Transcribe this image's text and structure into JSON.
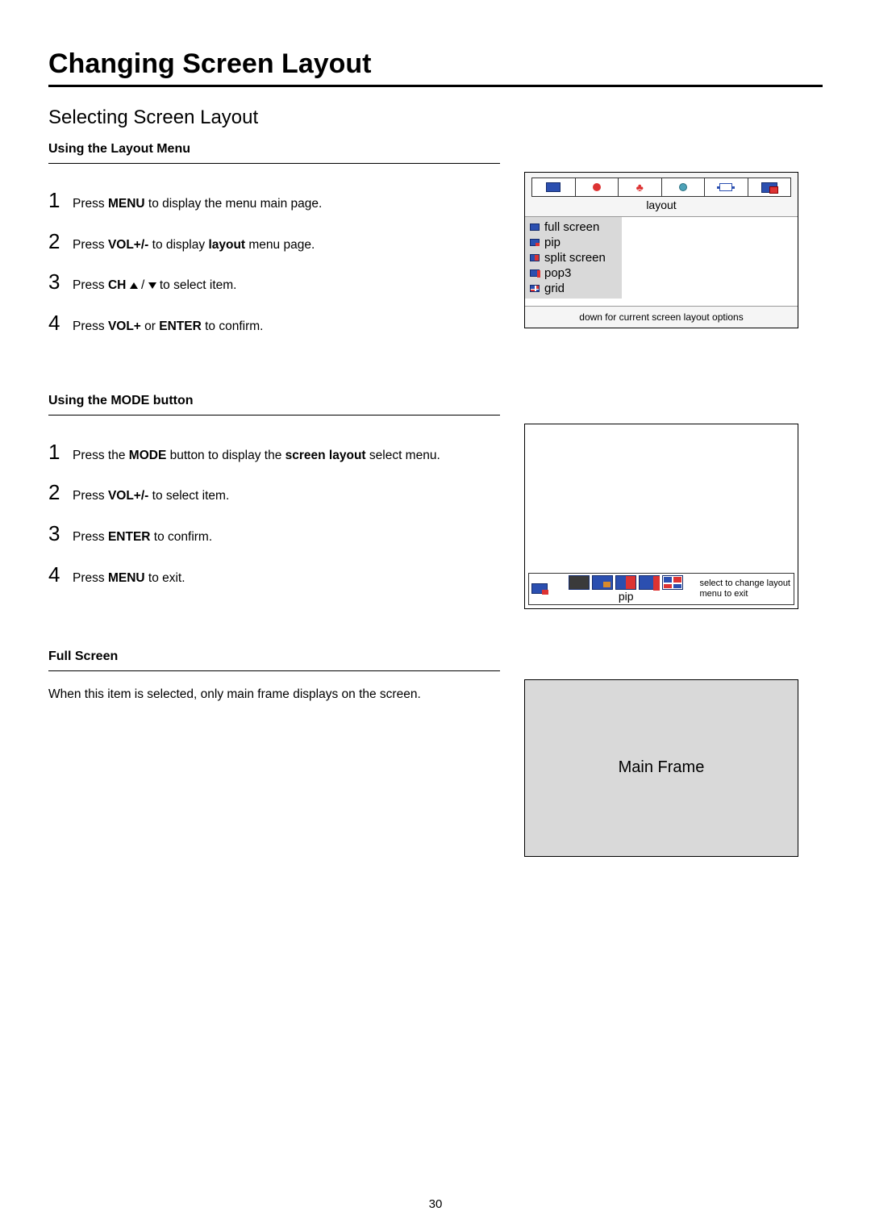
{
  "page": {
    "title": "Changing Screen Layout",
    "subtitle": "Selecting Screen Layout",
    "number": "30"
  },
  "section1": {
    "label": "Using the Layout Menu",
    "steps": [
      {
        "num": "1",
        "html": "Press <b>MENU</b> to display the menu main page."
      },
      {
        "num": "2",
        "html": "Press <b>VOL+/-</b> to display <b>layout</b> menu page."
      },
      {
        "num": "3",
        "html": "Press <b>CH</b> <span class='tri-up'></span> / <span class='tri-down'></span> to select item."
      },
      {
        "num": "4",
        "html": "Press <b>VOL+</b> or <b>ENTER</b> to confirm."
      }
    ],
    "fig": {
      "tab_caption": "layout",
      "menu_items": [
        "full screen",
        "pip",
        "split screen",
        "pop3",
        "grid"
      ],
      "footer": "down for current screen layout options"
    }
  },
  "section2": {
    "label": "Using the MODE button",
    "steps": [
      {
        "num": "1",
        "html": "Press the <b>MODE</b> button to display the <b>screen layout</b> select menu."
      },
      {
        "num": "2",
        "html": "Press <b>VOL+/-</b> to select item."
      },
      {
        "num": "3",
        "html": "Press <b>ENTER</b> to confirm."
      },
      {
        "num": "4",
        "html": "Press <b>MENU</b> to exit."
      }
    ],
    "fig": {
      "caption": "pip",
      "right_line1": "select to change layout",
      "right_line2": "menu to exit"
    }
  },
  "section3": {
    "label": "Full Screen",
    "body": "When this item is selected, only main frame displays on the screen.",
    "fig_label": "Main Frame"
  },
  "colors": {
    "blue": "#2b4fb0",
    "red": "#d33",
    "panel_gray": "#d9d9d9",
    "tab_gray": "#f5f5f5"
  }
}
